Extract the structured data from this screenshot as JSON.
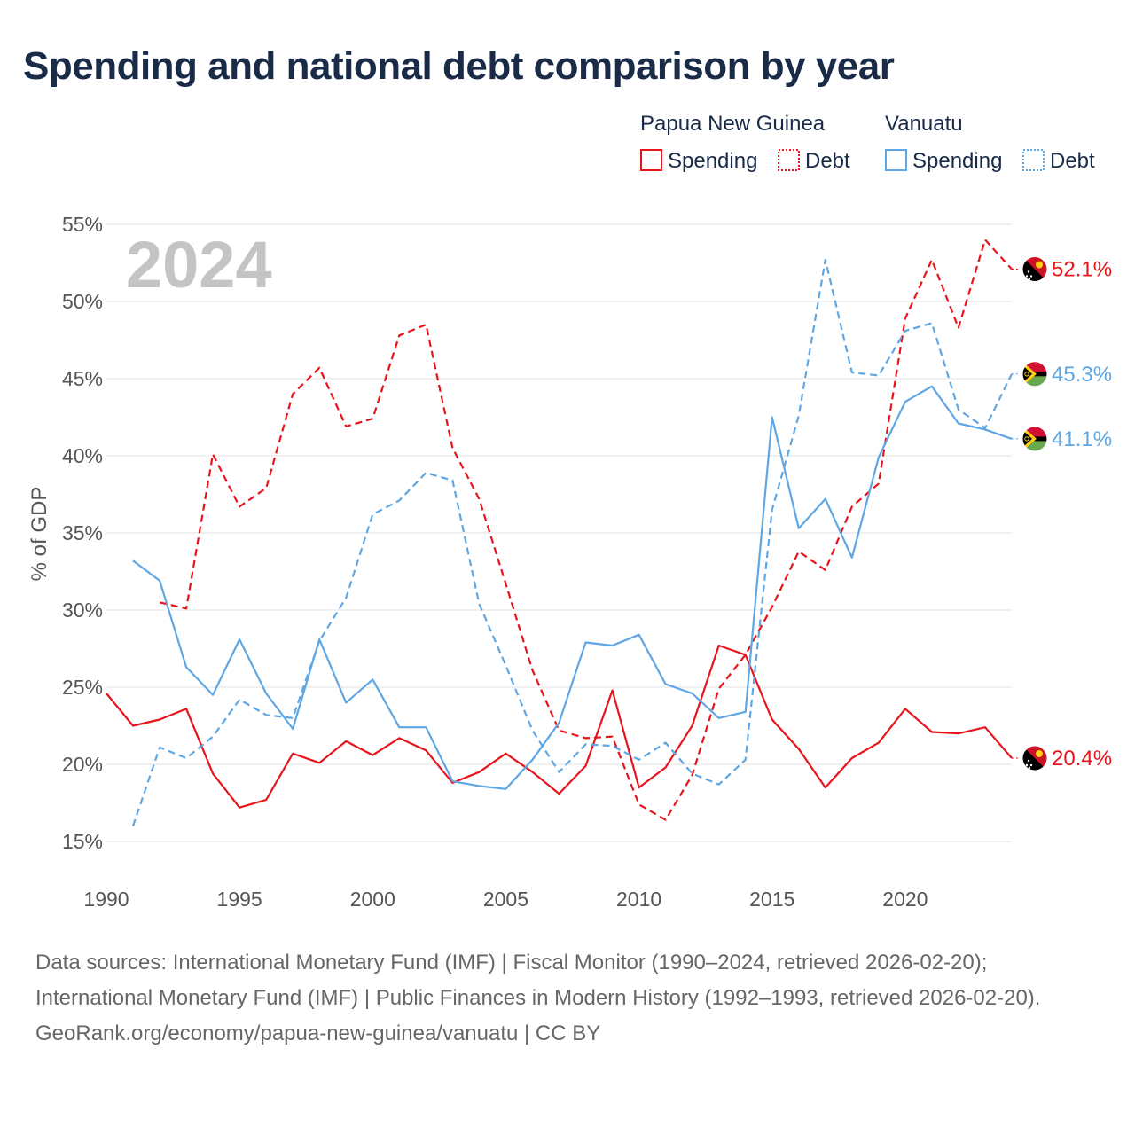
{
  "title": "Spending and national debt comparison by year",
  "chart_data": {
    "type": "line",
    "title": "Spending and national debt comparison by year",
    "year_label": "2024",
    "ylabel": "% of GDP",
    "xlabel": "",
    "xlim": [
      1990,
      2024
    ],
    "ylim": [
      15,
      55
    ],
    "x_ticks": [
      1990,
      1995,
      2000,
      2005,
      2010,
      2015,
      2020
    ],
    "x_tick_labels": [
      "1990",
      "1995",
      "2000",
      "2005",
      "2010",
      "2015",
      "2020"
    ],
    "y_ticks": [
      15,
      20,
      25,
      30,
      35,
      40,
      45,
      50,
      55
    ],
    "y_tick_labels": [
      "15%",
      "20%",
      "25%",
      "30%",
      "35%",
      "40%",
      "45%",
      "50%",
      "55%"
    ],
    "legend": {
      "groups": [
        {
          "country": "Papua New Guinea",
          "items": [
            {
              "label": "Spending",
              "style": "solid",
              "color": "#e8141c"
            },
            {
              "label": "Debt",
              "style": "dashed",
              "color": "#e8141c"
            }
          ]
        },
        {
          "country": "Vanuatu",
          "items": [
            {
              "label": "Spending",
              "style": "solid",
              "color": "#5ea6e4"
            },
            {
              "label": "Debt",
              "style": "dashed",
              "color": "#5ea6e4"
            }
          ]
        }
      ],
      "position": "top-right"
    },
    "series": [
      {
        "name": "Papua New Guinea Spending",
        "country": "Papua New Guinea",
        "color": "#e8141c",
        "style": "solid",
        "end_label": "20.4%",
        "flag": "png",
        "points": [
          [
            1990,
            24.6
          ],
          [
            1991,
            22.5
          ],
          [
            1992,
            22.9
          ],
          [
            1993,
            23.6
          ],
          [
            1994,
            19.4
          ],
          [
            1995,
            17.2
          ],
          [
            1996,
            17.7
          ],
          [
            1997,
            20.7
          ],
          [
            1998,
            20.1
          ],
          [
            1999,
            21.5
          ],
          [
            2000,
            20.6
          ],
          [
            2001,
            21.7
          ],
          [
            2002,
            20.9
          ],
          [
            2003,
            18.8
          ],
          [
            2004,
            19.5
          ],
          [
            2005,
            20.7
          ],
          [
            2006,
            19.5
          ],
          [
            2007,
            18.1
          ],
          [
            2008,
            19.9
          ],
          [
            2009,
            24.8
          ],
          [
            2010,
            18.5
          ],
          [
            2011,
            19.8
          ],
          [
            2012,
            22.5
          ],
          [
            2013,
            27.7
          ],
          [
            2014,
            27.1
          ],
          [
            2015,
            22.9
          ],
          [
            2016,
            21.0
          ],
          [
            2017,
            18.5
          ],
          [
            2018,
            20.4
          ],
          [
            2019,
            21.4
          ],
          [
            2020,
            23.6
          ],
          [
            2021,
            22.1
          ],
          [
            2022,
            22.0
          ],
          [
            2023,
            22.4
          ],
          [
            2024,
            20.4
          ]
        ]
      },
      {
        "name": "Papua New Guinea Debt",
        "country": "Papua New Guinea",
        "color": "#e8141c",
        "style": "dashed",
        "end_label": "52.1%",
        "flag": "png",
        "points": [
          [
            1992,
            30.5
          ],
          [
            1993,
            30.1
          ],
          [
            1994,
            40.1
          ],
          [
            1995,
            36.7
          ],
          [
            1996,
            37.9
          ],
          [
            1997,
            44.0
          ],
          [
            1998,
            45.7
          ],
          [
            1999,
            41.9
          ],
          [
            2000,
            42.4
          ],
          [
            2001,
            47.8
          ],
          [
            2002,
            48.5
          ],
          [
            2003,
            40.5
          ],
          [
            2004,
            37.2
          ],
          [
            2005,
            31.7
          ],
          [
            2006,
            26.1
          ],
          [
            2007,
            22.2
          ],
          [
            2008,
            21.7
          ],
          [
            2009,
            21.8
          ],
          [
            2010,
            17.4
          ],
          [
            2011,
            16.4
          ],
          [
            2012,
            19.3
          ],
          [
            2013,
            24.9
          ],
          [
            2014,
            27.1
          ],
          [
            2015,
            30.2
          ],
          [
            2016,
            33.8
          ],
          [
            2017,
            32.6
          ],
          [
            2018,
            36.7
          ],
          [
            2019,
            38.2
          ],
          [
            2020,
            48.9
          ],
          [
            2021,
            52.7
          ],
          [
            2022,
            48.3
          ],
          [
            2023,
            54.0
          ],
          [
            2024,
            52.1
          ]
        ]
      },
      {
        "name": "Vanuatu Spending",
        "country": "Vanuatu",
        "color": "#5ea6e4",
        "style": "solid",
        "end_label": "41.1%",
        "flag": "vanuatu",
        "points": [
          [
            1991,
            33.2
          ],
          [
            1992,
            31.9
          ],
          [
            1993,
            26.3
          ],
          [
            1994,
            24.5
          ],
          [
            1995,
            28.1
          ],
          [
            1996,
            24.6
          ],
          [
            1997,
            22.3
          ],
          [
            1998,
            28.1
          ],
          [
            1999,
            24.0
          ],
          [
            2000,
            25.5
          ],
          [
            2001,
            22.4
          ],
          [
            2002,
            22.4
          ],
          [
            2003,
            18.9
          ],
          [
            2004,
            18.6
          ],
          [
            2005,
            18.4
          ],
          [
            2006,
            20.3
          ],
          [
            2007,
            22.7
          ],
          [
            2008,
            27.9
          ],
          [
            2009,
            27.7
          ],
          [
            2010,
            28.4
          ],
          [
            2011,
            25.2
          ],
          [
            2012,
            24.6
          ],
          [
            2013,
            23.0
          ],
          [
            2014,
            23.4
          ],
          [
            2015,
            42.5
          ],
          [
            2016,
            35.3
          ],
          [
            2017,
            37.2
          ],
          [
            2018,
            33.4
          ],
          [
            2019,
            39.9
          ],
          [
            2020,
            43.5
          ],
          [
            2021,
            44.5
          ],
          [
            2022,
            42.1
          ],
          [
            2023,
            41.7
          ],
          [
            2024,
            41.1
          ]
        ]
      },
      {
        "name": "Vanuatu Debt",
        "country": "Vanuatu",
        "color": "#5ea6e4",
        "style": "dashed",
        "end_label": "45.3%",
        "flag": "vanuatu",
        "points": [
          [
            1991,
            16.0
          ],
          [
            1992,
            21.1
          ],
          [
            1993,
            20.4
          ],
          [
            1994,
            21.8
          ],
          [
            1995,
            24.2
          ],
          [
            1996,
            23.2
          ],
          [
            1997,
            23.0
          ],
          [
            1998,
            28.0
          ],
          [
            1999,
            30.8
          ],
          [
            2000,
            36.2
          ],
          [
            2001,
            37.1
          ],
          [
            2002,
            38.9
          ],
          [
            2003,
            38.4
          ],
          [
            2004,
            30.4
          ],
          [
            2005,
            26.4
          ],
          [
            2006,
            22.2
          ],
          [
            2007,
            19.5
          ],
          [
            2008,
            21.3
          ],
          [
            2009,
            21.2
          ],
          [
            2010,
            20.3
          ],
          [
            2011,
            21.4
          ],
          [
            2012,
            19.4
          ],
          [
            2013,
            18.7
          ],
          [
            2014,
            20.3
          ],
          [
            2015,
            36.5
          ],
          [
            2016,
            42.6
          ],
          [
            2017,
            52.7
          ],
          [
            2018,
            45.4
          ],
          [
            2019,
            45.2
          ],
          [
            2020,
            48.1
          ],
          [
            2021,
            48.6
          ],
          [
            2022,
            43.0
          ],
          [
            2023,
            41.8
          ],
          [
            2024,
            45.3
          ]
        ]
      }
    ]
  },
  "sources": {
    "line1": "Data sources: International Monetary Fund (IMF) | Fiscal Monitor (1990–2024, retrieved 2026-02-20); International Monetary Fund (IMF) | Public Finances in Modern History (1992–1993, retrieved 2026-02-20).",
    "line2": "GeoRank.org/economy/papua-new-guinea/vanuatu | CC BY"
  }
}
